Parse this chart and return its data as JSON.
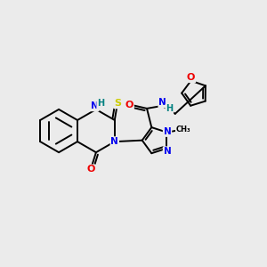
{
  "bg_color": "#ebebeb",
  "atom_colors": {
    "C": "#000000",
    "N": "#0000ee",
    "O": "#ee0000",
    "S": "#cccc00",
    "H": "#008080"
  },
  "bond_color": "#000000",
  "bond_width": 1.4
}
